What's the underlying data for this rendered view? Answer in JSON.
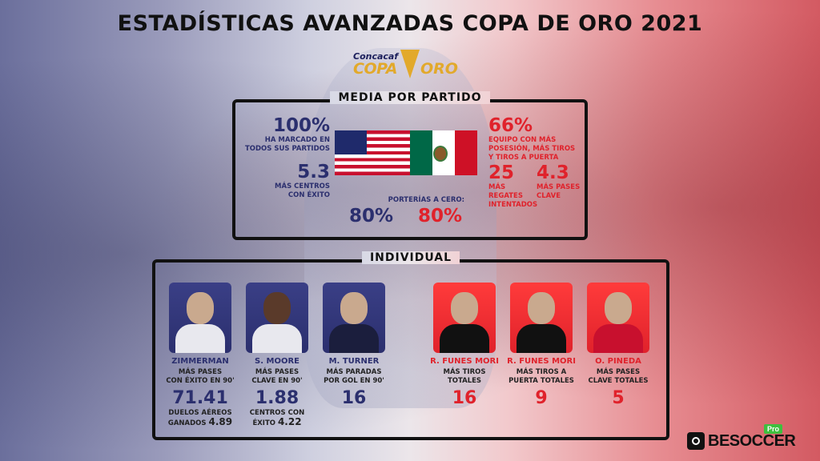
{
  "title": "ESTADÍSTICAS AVANZADAS COPA DE ORO 2021",
  "logo": {
    "small": "Concacaf",
    "copa": "COPA",
    "oro": "ORO"
  },
  "media": {
    "label": "MEDIA POR PARTIDO",
    "usa": {
      "pct": "100%",
      "pct_desc": [
        "HA MARCADO EN",
        "TODOS SUS PARTIDOS"
      ],
      "centros": "5.3",
      "centros_desc": [
        "MÁS CENTROS",
        "CON ÉXITO"
      ]
    },
    "mex": {
      "pct": "66%",
      "pct_desc": [
        "EQUIPO CON MÁS",
        "POSESIÓN, MÁS TIROS",
        "Y TIROS A PUERTA"
      ],
      "regates": "25",
      "regates_desc": [
        "MÁS REGATES",
        "INTENTADOS"
      ],
      "pases": "4.3",
      "pases_desc": [
        "MÁS PASES",
        "CLAVE"
      ]
    },
    "porterias_label": "PORTERÍAS A CERO:",
    "porterias_usa": "80%",
    "porterias_mex": "80%"
  },
  "individual": {
    "label": "INDIVIDUAL",
    "players": [
      {
        "name": "ZIMMERMAN",
        "desc": [
          "MÁS PASES",
          "CON ÉXITO EN 90'"
        ],
        "stat": "71.41",
        "extra": [
          "DUELOS AÉREOS",
          "GANADOS"
        ],
        "extra_val": "4.89",
        "team": "usa"
      },
      {
        "name": "S. MOORE",
        "desc": [
          "MÁS PASES",
          "CLAVE EN 90'"
        ],
        "stat": "1.88",
        "extra": [
          "CENTROS CON",
          "ÉXITO"
        ],
        "extra_val": "4.22",
        "team": "usa"
      },
      {
        "name": "M. TURNER",
        "desc": [
          "MÁS PARADAS",
          "POR GOL EN 90'"
        ],
        "stat": "16",
        "team": "usa"
      },
      {
        "name": "R. FUNES MORI",
        "desc": [
          "MÁS TIROS",
          "TOTALES"
        ],
        "stat": "16",
        "team": "mex"
      },
      {
        "name": "R. FUNES MORI",
        "desc": [
          "MÁS TIROS A",
          "PUERTA TOTALES"
        ],
        "stat": "9",
        "team": "mex"
      },
      {
        "name": "O. PINEDA",
        "desc": [
          "MÁS PASES",
          "CLAVE TOTALES"
        ],
        "stat": "5",
        "team": "mex"
      }
    ]
  },
  "brand": {
    "name": "BESOCCER",
    "pro": "Pro"
  },
  "colors": {
    "usa": "#2b2f6e",
    "mex": "#e0222b",
    "gold": "#e2a92b"
  }
}
